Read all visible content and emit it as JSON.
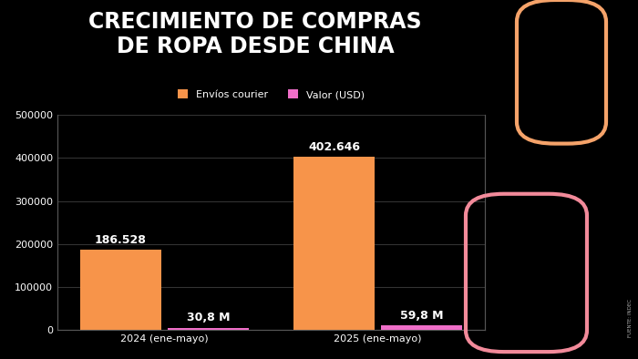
{
  "chart_data": {
    "type": "bar",
    "title": "CRECIMIENTO DE COMPRAS\nDE ROPA DESDE CHINA",
    "source": "FUENTE: INDEC",
    "categories": [
      "2024 (ene-mayo)",
      "2025 (ene-mayo)"
    ],
    "series": [
      {
        "name": "Envíos courier",
        "color": "#f7944a",
        "values": [
          186528,
          402646
        ],
        "value_labels": [
          "186.528",
          "402.646"
        ]
      },
      {
        "name": "Valor (USD)",
        "color": "#ef6ec8",
        "values": [
          30800000,
          59800000
        ],
        "value_labels": [
          "30,8 M",
          "59,8 M"
        ],
        "axis": "y2"
      }
    ],
    "ylim": [
      0,
      500000
    ],
    "yticks": [
      0,
      100000,
      200000,
      300000,
      400000,
      500000
    ],
    "y2lim": [
      0,
      2500000000
    ],
    "y2ticks": [],
    "grid": true,
    "legend": "upper center",
    "data_labels": true
  }
}
